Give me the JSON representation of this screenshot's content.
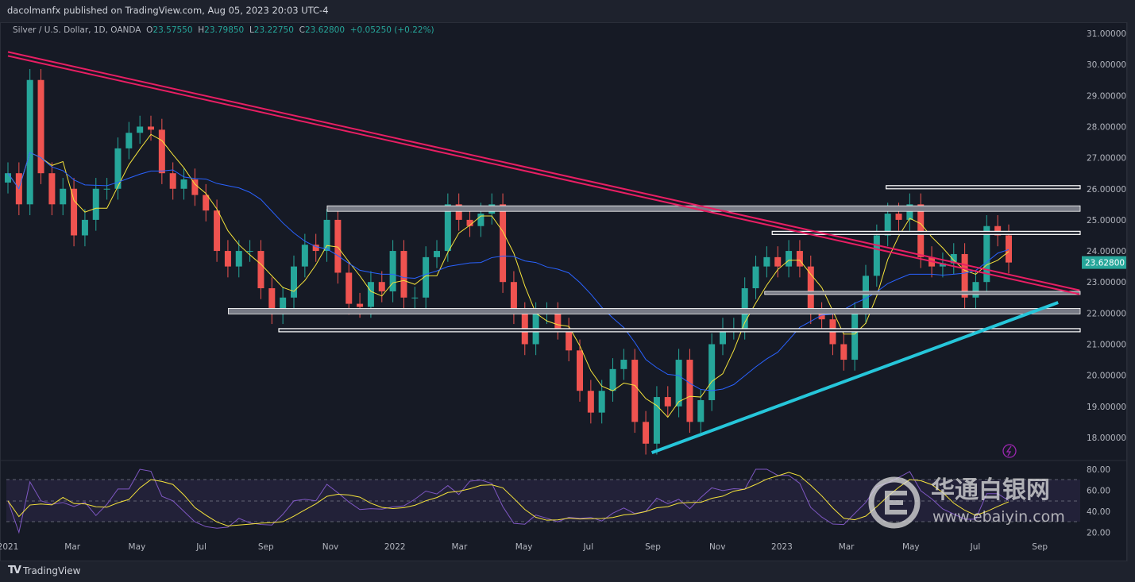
{
  "header": {
    "published": "dacolmanfx published on TradingView.com, Aug 05, 2023 20:03 UTC-4"
  },
  "legend": {
    "symbol": "Silver / U.S. Dollar, 1D, OANDA",
    "o_label": "O",
    "o": "23.57550",
    "h_label": "H",
    "h": "23.79850",
    "l_label": "L",
    "l": "23.22750",
    "c_label": "C",
    "c": "23.62800",
    "change": "+0.05250 (+0.22%)"
  },
  "footer": {
    "logo_text": "TradingView"
  },
  "watermark": {
    "title": "华通白银网",
    "url": "www.ebaiyin.com"
  },
  "colors": {
    "up": "#26a69a",
    "down": "#ef5350",
    "ma_fast": "#f5e33b",
    "ma_slow": "#2962ff",
    "rsi": "#7e57c2",
    "downtrend": "#e91e63",
    "uptrend": "#26c6da",
    "last_price": "#26a69a"
  },
  "chart_data": {
    "type": "candlestick",
    "interval": "semi-monthly approximation of daily candles",
    "start": "2021-01",
    "closes": [
      26.5,
      25.5,
      29.5,
      26.5,
      25.5,
      26,
      24.5,
      25,
      26,
      26,
      27.3,
      27.8,
      28,
      27.9,
      26.5,
      26,
      26.3,
      25.8,
      25.3,
      24,
      23.5,
      24,
      24,
      22.8,
      22,
      22.5,
      23.5,
      24.2,
      24,
      25,
      23.3,
      22.3,
      22.2,
      23,
      22.7,
      24,
      22.5,
      22.5,
      23.8,
      24,
      25.5,
      25,
      24.8,
      25.2,
      25.5,
      23,
      22,
      21,
      22,
      22,
      21.5,
      20.8,
      19.5,
      18.8,
      19.5,
      20.2,
      20.5,
      18.5,
      17.8,
      19.3,
      19,
      20.5,
      18.5,
      19.2,
      21,
      21.5,
      21.5,
      22.8,
      23.5,
      23.8,
      23.5,
      24,
      23.5,
      22,
      21.8,
      21,
      20.5,
      22,
      23.2,
      24.5,
      25.2,
      25,
      25.5,
      23.8,
      23.5,
      23.6,
      23.9,
      22.5,
      23,
      24.8,
      24.5,
      23.628
    ],
    "last_price": "23.62800",
    "ylim": [
      17.5,
      31.3
    ],
    "price_ticks": [
      "31.00000",
      "30.00000",
      "29.00000",
      "28.00000",
      "27.00000",
      "26.00000",
      "25.00000",
      "24.00000",
      "23.00000",
      "22.00000",
      "21.00000",
      "20.00000",
      "19.00000",
      "18.00000"
    ],
    "time_ticks": [
      "2021",
      "Mar",
      "May",
      "Jul",
      "Sep",
      "Nov",
      "2022",
      "Mar",
      "May",
      "Jul",
      "Sep",
      "Nov",
      "2023",
      "Mar",
      "May",
      "Jul",
      "Sep"
    ],
    "rsi_ticks": [
      "80.00",
      "60.00",
      "40.00",
      "20.00"
    ],
    "trendlines": [
      {
        "name": "downtrend",
        "from": {
          "date": "2021-01-01",
          "price": 30.34
        },
        "to": {
          "date": "2023-10-08",
          "price": 22.67
        }
      },
      {
        "name": "uptrend",
        "from": {
          "date": "2022-08-30",
          "price": 17.51
        },
        "to": {
          "date": "2023-09-18",
          "price": 22.34
        }
      }
    ],
    "levels": [
      {
        "price": 26.05,
        "from": "2023-04-08",
        "style": "white"
      },
      {
        "price": 25.35,
        "from": "2021-10-28",
        "style": "grey"
      },
      {
        "price": 24.58,
        "from": "2022-12-22",
        "style": "white"
      },
      {
        "price": 22.65,
        "from": "2022-12-15",
        "style": "grey-thin"
      },
      {
        "price": 22.05,
        "from": "2021-07-26",
        "style": "grey"
      },
      {
        "price": 21.45,
        "from": "2021-09-13",
        "style": "white"
      }
    ]
  }
}
